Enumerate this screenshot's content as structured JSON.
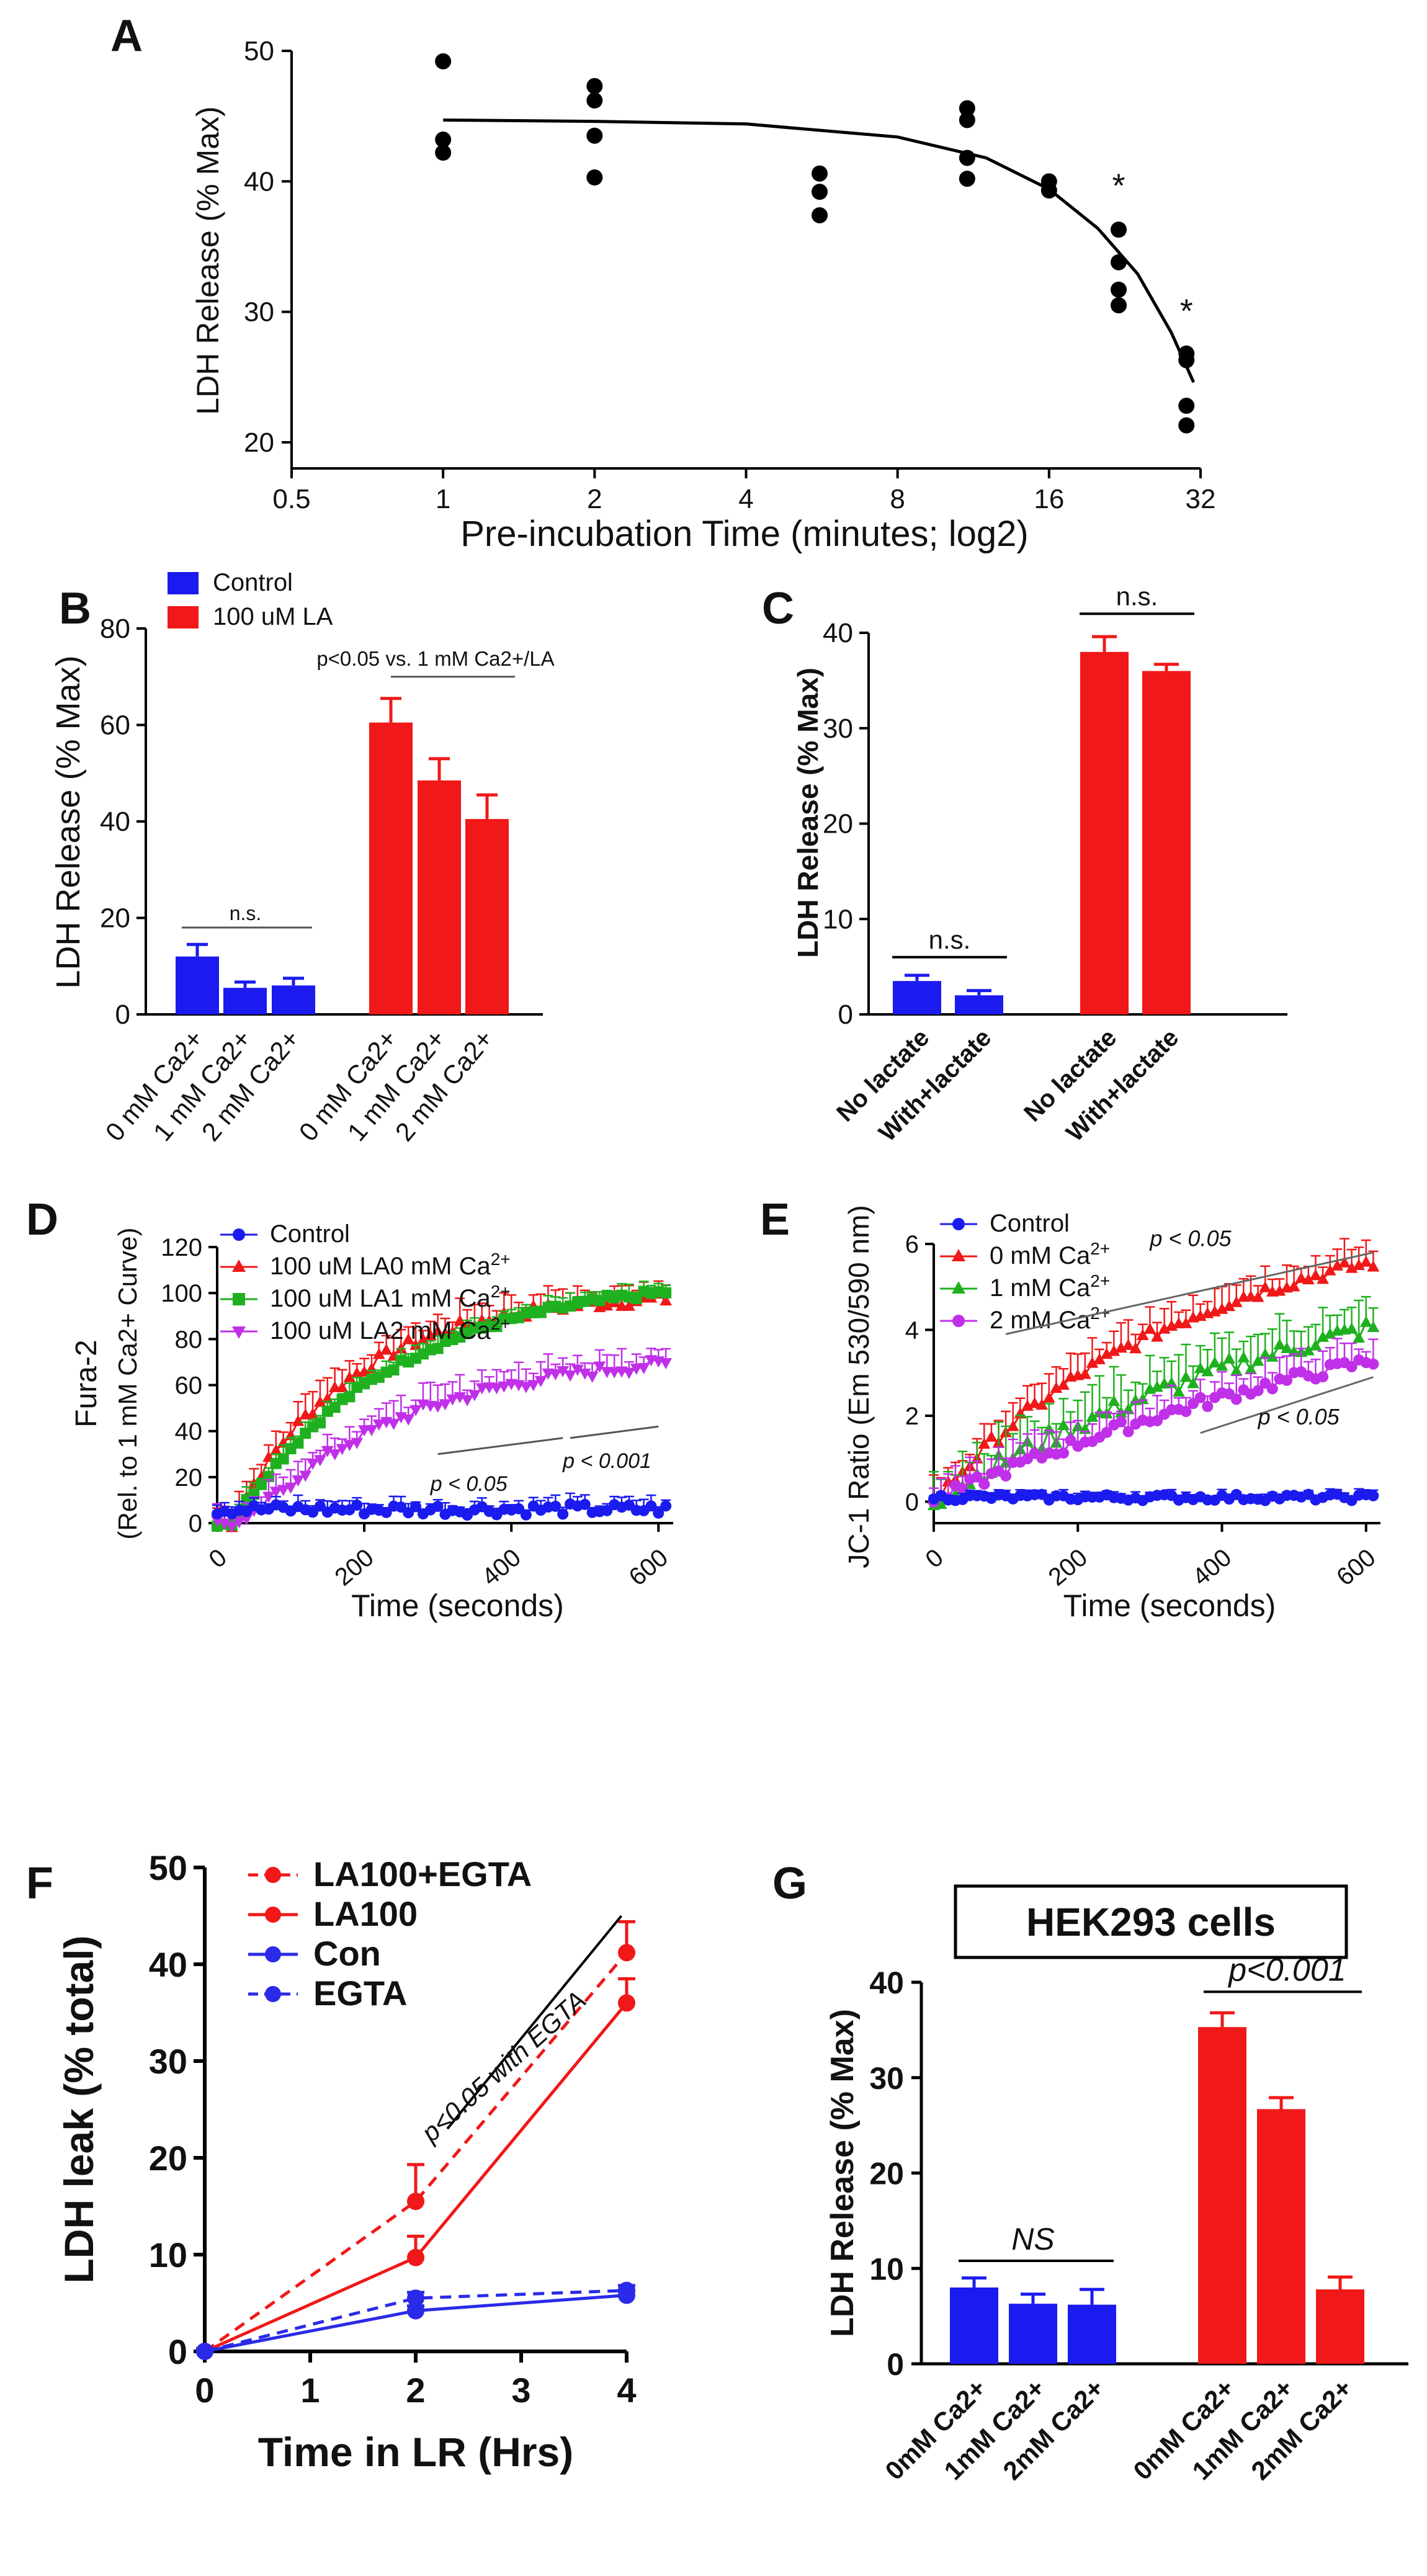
{
  "colors": {
    "blue": "#1b1bef",
    "red": "#f01818",
    "green": "#1fb01f",
    "magenta": "#c030e8",
    "black": "#000000",
    "gray": "#555555"
  },
  "panels": {
    "A": {
      "letter": "A"
    },
    "B": {
      "letter": "B"
    },
    "C": {
      "letter": "C"
    },
    "D": {
      "letter": "D"
    },
    "E": {
      "letter": "E"
    },
    "F": {
      "letter": "F"
    },
    "G": {
      "letter": "G"
    }
  },
  "chart_data": [
    {
      "id": "A",
      "type": "scatter",
      "xlabel": "Pre-incubation Time  (minutes; log2)",
      "ylabel": "LDH  Release (% Max)",
      "xscale": "log2",
      "xlim": [
        0.5,
        32
      ],
      "ylim": [
        18,
        50
      ],
      "xticks": [
        0.5,
        1,
        2,
        4,
        8,
        16,
        32
      ],
      "xtick_labels": [
        "0.5",
        "1",
        "2",
        "4",
        "8",
        "16",
        "32"
      ],
      "yticks": [
        20,
        30,
        40,
        50
      ],
      "ytick_labels": [
        "20",
        "30",
        "40",
        "50"
      ],
      "points": [
        [
          1,
          49.2
        ],
        [
          1,
          43.2
        ],
        [
          1,
          42.2
        ],
        [
          2,
          47.3
        ],
        [
          2,
          46.2
        ],
        [
          2,
          43.5
        ],
        [
          2,
          40.3
        ],
        [
          5.6,
          40.6
        ],
        [
          5.6,
          39.2
        ],
        [
          5.6,
          37.4
        ],
        [
          11,
          45.6
        ],
        [
          11,
          44.7
        ],
        [
          11,
          41.8
        ],
        [
          11,
          40.2
        ],
        [
          16,
          40.0
        ],
        [
          16,
          39.3
        ],
        [
          22,
          36.3
        ],
        [
          22,
          33.8
        ],
        [
          22,
          31.7
        ],
        [
          22,
          30.5
        ],
        [
          30,
          26.8
        ],
        [
          30,
          26.3
        ],
        [
          30,
          22.8
        ],
        [
          30,
          21.3
        ]
      ],
      "fit": [
        [
          1,
          44.7
        ],
        [
          2,
          44.6
        ],
        [
          4,
          44.4
        ],
        [
          8,
          43.4
        ],
        [
          12,
          41.8
        ],
        [
          16,
          39.4
        ],
        [
          20,
          36.4
        ],
        [
          24,
          32.9
        ],
        [
          28,
          28.4
        ],
        [
          31,
          24.6
        ]
      ],
      "annotations": [
        {
          "text": "*",
          "x": 22,
          "y": 38.8
        },
        {
          "text": "*",
          "x": 30,
          "y": 29.2
        }
      ]
    },
    {
      "id": "B",
      "type": "bar",
      "ylabel": "LDH  Release (% Max)",
      "ylim": [
        0,
        80
      ],
      "yticks": [
        0,
        20,
        40,
        60,
        80
      ],
      "ytick_labels": [
        "0",
        "20",
        "40",
        "60",
        "80"
      ],
      "legend": [
        {
          "label": "Control",
          "color": "#1b1bef"
        },
        {
          "label": "100 uM LA",
          "color": "#f01818"
        }
      ],
      "categories": [
        "0 mM Ca2+",
        "1 mM Ca2+",
        "2 mM Ca2+",
        "0 mM Ca2+",
        "1 mM Ca2+",
        "2 mM Ca2+"
      ],
      "values": [
        12,
        5.5,
        6,
        60.5,
        48.5,
        40.5
      ],
      "errors": [
        2.5,
        1.2,
        1.5,
        5,
        4.5,
        5
      ],
      "groups": [
        "Control",
        "Control",
        "Control",
        "100 uM LA",
        "100 uM LA",
        "100 uM LA"
      ],
      "annotations": [
        {
          "text": "n.s.",
          "span": [
            0,
            2
          ],
          "y": 18
        },
        {
          "text": "p<0.05 vs. 1 mM Ca2+/LA",
          "span": [
            3,
            5
          ],
          "y": 70
        }
      ]
    },
    {
      "id": "C",
      "type": "bar",
      "ylabel": "LDH Release (% Max)",
      "ylim": [
        0,
        40
      ],
      "yticks": [
        0,
        10,
        20,
        30,
        40
      ],
      "ytick_labels": [
        "0",
        "10",
        "20",
        "30",
        "40"
      ],
      "categories": [
        "No lactate",
        "With+lactate",
        "No lactate",
        "With+lactate"
      ],
      "values": [
        3.5,
        2.0,
        38.0,
        36.0
      ],
      "errors": [
        0.6,
        0.5,
        1.6,
        0.7
      ],
      "groups": [
        "Control",
        "Control",
        "100 uM LA",
        "100 uM LA"
      ],
      "annotations": [
        {
          "text": "n.s.",
          "span": [
            0,
            1
          ],
          "y": 6
        },
        {
          "text": "n.s.",
          "span": [
            2,
            3
          ],
          "y": 42
        }
      ]
    },
    {
      "id": "D",
      "type": "line",
      "xlabel": "Time  (seconds)",
      "ylabel": "Fura-2",
      "ylabel2": "(Rel. to 1 mM Ca2+ Curve)",
      "xlim": [
        0,
        620
      ],
      "ylim": [
        0,
        120
      ],
      "xticks": [
        0,
        200,
        400,
        600
      ],
      "xtick_labels": [
        "0",
        "200",
        "400",
        "600"
      ],
      "yticks": [
        0,
        20,
        40,
        60,
        80,
        100,
        120
      ],
      "ytick_labels": [
        "0",
        "20",
        "40",
        "60",
        "80",
        "100",
        "120"
      ],
      "series": [
        {
          "name": "Control",
          "prefix": "Control",
          "sup": "",
          "color": "#1b1bef",
          "marker": "circle",
          "plateau": 6,
          "k": 0,
          "delay": 0,
          "err": 5
        },
        {
          "name": "100 uM LA 0 mM Ca2+",
          "prefix": "100 uM LA0 mM Ca",
          "sup": "2+",
          "color": "#f01818",
          "marker": "triangle",
          "plateau": 100,
          "k": 0.0062,
          "delay": 20,
          "err": 10
        },
        {
          "name": "100 uM LA 1 mM Ca2+",
          "prefix": "100 uM LA1 mM Ca",
          "sup": "2+",
          "color": "#1fb01f",
          "marker": "square",
          "plateau": 108,
          "k": 0.0045,
          "delay": 20,
          "err": 6
        },
        {
          "name": "100 uM LA 2 mM Ca2+",
          "prefix": "100 uM LA2 mM Ca",
          "sup": "2+",
          "color": "#c030e8",
          "marker": "triangle-down",
          "plateau": 75,
          "k": 0.0045,
          "delay": 40,
          "err": 10
        }
      ],
      "annotations": [
        {
          "text": "p < 0.05"
        },
        {
          "text": "p < 0.001"
        }
      ]
    },
    {
      "id": "E",
      "type": "line",
      "xlabel": "Time  (seconds)",
      "ylabel": "JC-1 Ratio (Em 530/590 nm)",
      "xlim": [
        0,
        620
      ],
      "ylim": [
        -0.5,
        6
      ],
      "xticks": [
        0,
        200,
        400,
        600
      ],
      "xtick_labels": [
        "0",
        "200",
        "400",
        "600"
      ],
      "yticks": [
        0,
        2,
        4,
        6
      ],
      "ytick_labels": [
        "0",
        "2",
        "4",
        "6"
      ],
      "series": [
        {
          "name": "Control",
          "prefix": "Control",
          "sup": "",
          "color": "#1b1bef",
          "marker": "circle",
          "plateau": 0.1,
          "k": 0,
          "delay": 0,
          "err": 0.15
        },
        {
          "name": "0 mM Ca2+",
          "prefix": "0 mM Ca",
          "sup": "2+",
          "color": "#f01818",
          "marker": "triangle",
          "plateau": 6.8,
          "k": 0.0028,
          "delay": 0,
          "err": 0.6
        },
        {
          "name": "1 mM Ca2+",
          "prefix": "1 mM Ca",
          "sup": "2+",
          "color": "#1fb01f",
          "marker": "triangle",
          "plateau": 6.5,
          "k": 0.0016,
          "delay": 0,
          "err": 0.9
        },
        {
          "name": "2 mM Ca2+",
          "prefix": "2 mM Ca",
          "sup": "2+",
          "color": "#c030e8",
          "marker": "circle",
          "plateau": 6.0,
          "k": 0.0013,
          "delay": 0,
          "err": 0.6
        }
      ],
      "annotations": [
        {
          "text": "p < 0.05"
        },
        {
          "text": "p < 0.05"
        }
      ]
    },
    {
      "id": "F",
      "type": "line",
      "xlabel": "Time in LR (Hrs)",
      "ylabel": "LDH leak (% total)",
      "xlim": [
        0,
        4
      ],
      "ylim": [
        0,
        50
      ],
      "xticks": [
        0,
        1,
        2,
        3,
        4
      ],
      "xtick_labels": [
        "0",
        "1",
        "2",
        "3",
        "4"
      ],
      "yticks": [
        0,
        10,
        20,
        30,
        40,
        50
      ],
      "ytick_labels": [
        "0",
        "10",
        "20",
        "30",
        "40",
        "50"
      ],
      "series": [
        {
          "name": "LA100+EGTA",
          "color": "#f01818",
          "dashed": true,
          "x": [
            0,
            2,
            4
          ],
          "y": [
            0,
            15.5,
            41.2
          ],
          "err": [
            0.3,
            3.8,
            3.2
          ]
        },
        {
          "name": "LA100",
          "color": "#f01818",
          "dashed": false,
          "x": [
            0,
            2,
            4
          ],
          "y": [
            0,
            9.7,
            36.0
          ],
          "err": [
            0.3,
            2.2,
            2.5
          ]
        },
        {
          "name": "Con",
          "color": "#2a2ae8",
          "dashed": false,
          "x": [
            0,
            2,
            4
          ],
          "y": [
            0,
            4.2,
            5.8
          ],
          "err": [
            0.2,
            0.5,
            0.5
          ]
        },
        {
          "name": "EGTA",
          "color": "#2a2ae8",
          "dashed": true,
          "x": [
            0,
            2,
            4
          ],
          "y": [
            0,
            5.5,
            6.3
          ],
          "err": [
            0.2,
            0.6,
            0.5
          ]
        }
      ],
      "annotations": [
        {
          "text": "p<0.05 with EGTA"
        }
      ]
    },
    {
      "id": "G",
      "type": "bar",
      "title": "HEK293 cells",
      "ylabel": "LDH Release (% Max)",
      "ylim": [
        0,
        40
      ],
      "yticks": [
        0,
        10,
        20,
        30,
        40
      ],
      "ytick_labels": [
        "0",
        "10",
        "20",
        "30",
        "40"
      ],
      "categories": [
        "0mM Ca2+",
        "1mM Ca2+",
        "2mM Ca2+",
        "0mM Ca2+",
        "1mM Ca2+",
        "2mM Ca2+"
      ],
      "values": [
        8.0,
        6.3,
        6.2,
        35.3,
        26.7,
        7.8
      ],
      "errors": [
        1.0,
        1.0,
        1.6,
        1.5,
        1.2,
        1.3
      ],
      "groups": [
        "Control",
        "Control",
        "Control",
        "LA",
        "LA",
        "LA"
      ],
      "annotations": [
        {
          "text": "NS",
          "span": [
            0,
            2
          ],
          "y": 10.8
        },
        {
          "text": "p<0.001",
          "span": [
            3,
            5
          ],
          "y": 39
        }
      ]
    }
  ]
}
